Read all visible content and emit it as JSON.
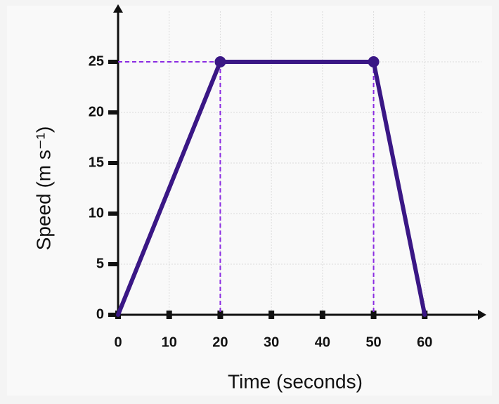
{
  "chart_data": {
    "type": "line",
    "x_label": "Time (seconds)",
    "y_label": "Speed (m s⁻¹)",
    "x": [
      0,
      20,
      50,
      60
    ],
    "values": [
      0,
      25,
      25,
      0
    ],
    "markers": [
      false,
      true,
      true,
      false
    ],
    "guides": true,
    "color": "#3a1785",
    "guide_color": "#8a2be2",
    "xlim": [
      0,
      70
    ],
    "ylim": [
      0,
      30
    ],
    "xticks": [
      0,
      10,
      20,
      30,
      40,
      50,
      60
    ],
    "yticks": [
      0,
      5,
      10,
      15,
      20,
      25
    ],
    "grid": true
  }
}
